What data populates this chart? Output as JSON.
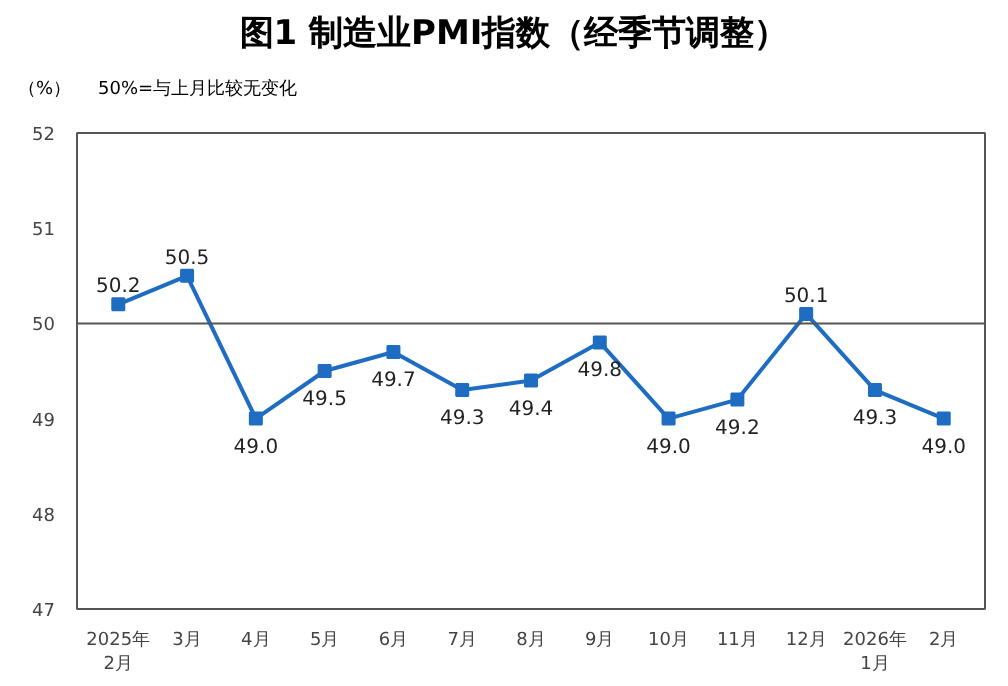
{
  "chart_data": {
    "type": "line",
    "title": "图1  制造业PMI指数（经季节调整）",
    "ylabel": "（%）",
    "annotations": [
      "50%=与上月比较无变化"
    ],
    "categories": [
      "2025年\n2月",
      "3月",
      "4月",
      "5月",
      "6月",
      "7月",
      "8月",
      "9月",
      "10月",
      "11月",
      "12月",
      "2026年\n1月",
      "2月"
    ],
    "series": [
      {
        "color": "#1f6dc2",
        "values": [
          50.2,
          50.5,
          49.0,
          49.5,
          49.7,
          49.3,
          49.4,
          49.8,
          49.0,
          49.2,
          50.1,
          49.3,
          49.0
        ],
        "value_labels": [
          "50.2",
          "50.5",
          "49.0",
          "49.5",
          "49.7",
          "49.3",
          "49.4",
          "49.8",
          "49.0",
          "49.2",
          "50.1",
          "49.3",
          "49.0"
        ]
      }
    ],
    "ylim": [
      47,
      52
    ],
    "yticks": [
      47,
      48,
      49,
      50,
      51,
      52
    ],
    "ref_lines": [
      {
        "axis": "y",
        "value": 50,
        "color": "#555555"
      }
    ],
    "marker": "square",
    "grid": false
  }
}
